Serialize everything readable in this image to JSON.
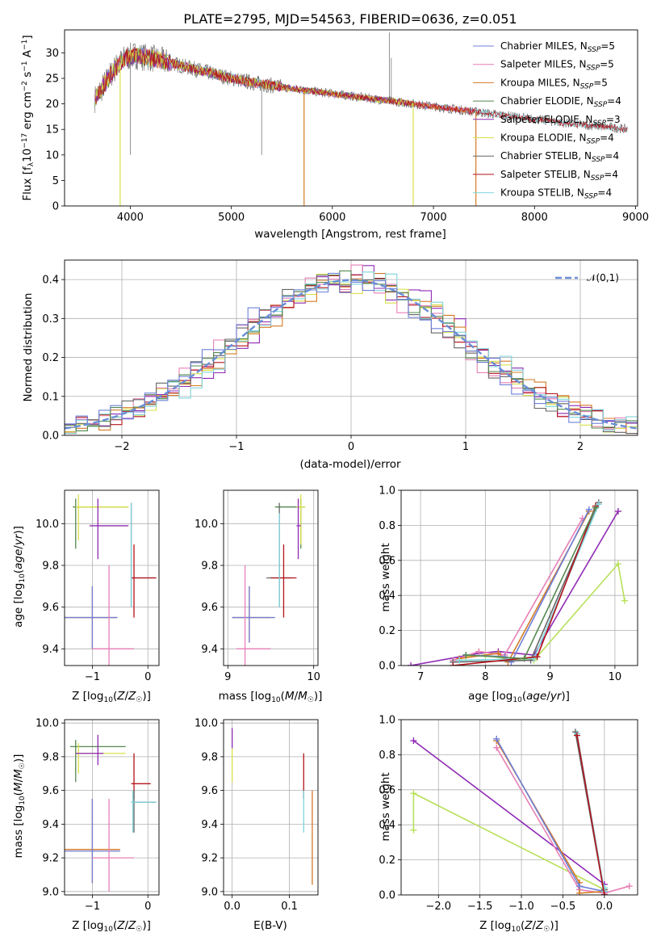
{
  "figure": {
    "title": "PLATE=2795, MJD=54563, FIBERID=0636, z=0.051"
  },
  "colors": {
    "chabrier_miles": "#6f80d8",
    "salpeter_miles": "#e77fb6",
    "kroupa_miles": "#d57a26",
    "chabrier_elodie": "#55894f",
    "salpeter_elodie": "#8f2ab3",
    "kroupa_elodie": "#d8e04a",
    "chabrier_stelib": "#666666",
    "salpeter_stelib": "#b5121b",
    "kroupa_stelib": "#7fd4dc",
    "kroupa_elodie_marker": "#b8e05a",
    "normal_curve": "#6a8ed6"
  },
  "chart_data": [
    {
      "id": "spectrum",
      "type": "line",
      "title": "PLATE=2795, MJD=54563, FIBERID=0636, z=0.051",
      "xlabel": "wavelength [Angstrom, rest frame]",
      "ylabel": "Flux [f_λ 10^-17 erg cm^-2 s^-1 A^-1]",
      "xlim": [
        3350,
        9020
      ],
      "ylim": [
        0,
        34.5
      ],
      "xticks": [
        4000,
        5000,
        6000,
        7000,
        8000,
        9000
      ],
      "yticks": [
        0,
        5,
        10,
        15,
        20,
        25,
        30
      ],
      "legend_position": "top-right",
      "series": [
        {
          "name": "Chabrier MILES, N_SSP=5",
          "color_key": "chabrier_miles",
          "x_range": [
            3650,
            7400
          ]
        },
        {
          "name": "Salpeter MILES, N_SSP=5",
          "color_key": "salpeter_miles",
          "x_range": [
            3650,
            7400
          ]
        },
        {
          "name": "Kroupa MILES, N_SSP=5",
          "color_key": "kroupa_miles",
          "x_range": [
            3650,
            7400
          ]
        },
        {
          "name": "Chabrier ELODIE, N_SSP=4",
          "color_key": "chabrier_elodie",
          "x_range": [
            3650,
            6800
          ]
        },
        {
          "name": "Salpeter ELODIE, N_SSP=3",
          "color_key": "salpeter_elodie",
          "x_range": [
            3650,
            6800
          ]
        },
        {
          "name": "Kroupa ELODIE, N_SSP=4",
          "color_key": "kroupa_elodie",
          "x_range": [
            3650,
            6800
          ]
        },
        {
          "name": "Chabrier STELIB, N_SSP=4",
          "color_key": "chabrier_stelib",
          "x_range": [
            3650,
            8920
          ]
        },
        {
          "name": "Salpeter STELIB, N_SSP=4",
          "color_key": "salpeter_stelib",
          "x_range": [
            3650,
            8920
          ]
        },
        {
          "name": "Kroupa STELIB, N_SSP=4",
          "color_key": "kroupa_stelib",
          "x_range": [
            3650,
            8920
          ]
        }
      ],
      "continuum": [
        [
          3650,
          21
        ],
        [
          3750,
          24
        ],
        [
          3850,
          27
        ],
        [
          3950,
          29
        ],
        [
          4050,
          29.5
        ],
        [
          4200,
          29
        ],
        [
          4400,
          28
        ],
        [
          4600,
          27
        ],
        [
          4800,
          26
        ],
        [
          5000,
          25
        ],
        [
          5200,
          24.2
        ],
        [
          5400,
          23.6
        ],
        [
          5600,
          23
        ],
        [
          5800,
          22.5
        ],
        [
          6000,
          22
        ],
        [
          6200,
          21.5
        ],
        [
          6400,
          21
        ],
        [
          6600,
          20.5
        ],
        [
          6800,
          20
        ],
        [
          7000,
          19.5
        ],
        [
          7200,
          19
        ],
        [
          7400,
          18.5
        ],
        [
          7600,
          18
        ],
        [
          7800,
          17.5
        ],
        [
          8000,
          17
        ],
        [
          8200,
          16.5
        ],
        [
          8400,
          16
        ],
        [
          8600,
          15.7
        ],
        [
          8800,
          15.3
        ],
        [
          8920,
          15
        ]
      ],
      "dips": [
        [
          3900,
          0
        ],
        [
          5720,
          0
        ],
        [
          6800,
          0
        ],
        [
          7420,
          0
        ]
      ],
      "spikes": [
        [
          6563,
          34
        ],
        [
          6583,
          29
        ],
        [
          4000,
          10
        ],
        [
          5300,
          10
        ]
      ]
    },
    {
      "id": "residuals",
      "type": "line",
      "xlabel": "(data-model)/error",
      "ylabel": "Normed distribution",
      "xlim": [
        -2.5,
        2.5
      ],
      "ylim": [
        0,
        0.45
      ],
      "xticks": [
        -2,
        -1,
        0,
        1,
        2
      ],
      "yticks": [
        0.0,
        0.1,
        0.2,
        0.3,
        0.4
      ],
      "legend_position": "top-right",
      "legend": "𝒩(0,1)",
      "bin_width": 0.1
    },
    {
      "id": "age_vs_Z",
      "type": "scatter",
      "xlabel": "Z [log10(Z/Z☉)]",
      "ylabel": "age [log10(age/yr)]",
      "xlim": [
        -1.5,
        0.2
      ],
      "ylim": [
        9.32,
        10.16
      ],
      "xticks": [
        -1,
        0
      ],
      "xtick_labels": [
        "−1",
        "0"
      ],
      "yticks": [
        9.4,
        9.6,
        9.8,
        10.0
      ],
      "points": [
        {
          "x": -1.3,
          "y": 10.08,
          "xerr": 0.0,
          "yerr": 0.2,
          "color_key": "chabrier_elodie",
          "xr": [
            -1.35,
            -0.35
          ],
          "yr": [
            9.88,
            10.12
          ]
        },
        {
          "x": -1.25,
          "y": 10.08,
          "color_key": "kroupa_elodie",
          "xr": [
            -1.3,
            -0.35
          ],
          "yr": [
            9.92,
            10.14
          ]
        },
        {
          "x": -0.9,
          "y": 9.99,
          "color_key": "salpeter_elodie",
          "xr": [
            -1.05,
            -0.35
          ],
          "yr": [
            9.83,
            10.12
          ]
        },
        {
          "x": -0.3,
          "y": 9.74,
          "color_key": "chabrier_stelib",
          "xr": [
            -0.3,
            0.15
          ],
          "yr": [
            9.6,
            10.1
          ]
        },
        {
          "x": -0.25,
          "y": 9.74,
          "color_key": "salpeter_stelib",
          "xr": [
            -0.3,
            0.15
          ],
          "yr": [
            9.55,
            9.9
          ]
        },
        {
          "x": -1.0,
          "y": 9.55,
          "color_key": "kroupa_miles",
          "xr": [
            -1.5,
            -0.55
          ],
          "yr": [
            9.4,
            9.7
          ]
        },
        {
          "x": -1.0,
          "y": 9.55,
          "color_key": "chabrier_miles",
          "xr": [
            -1.5,
            -0.55
          ],
          "yr": [
            9.4,
            9.7
          ]
        },
        {
          "x": -0.7,
          "y": 9.4,
          "color_key": "salpeter_miles",
          "xr": [
            -1.0,
            -0.25
          ],
          "yr": [
            9.32,
            9.8
          ]
        },
        {
          "x": -0.3,
          "y": 9.7,
          "color_key": "kroupa_stelib",
          "xr": [
            -0.3,
            -0.3
          ],
          "yr": [
            9.6,
            10.1
          ]
        }
      ]
    },
    {
      "id": "age_vs_mass",
      "type": "scatter",
      "xlabel": "mass [log10(M/M☉)]",
      "ylabel": "",
      "xlim": [
        8.95,
        10.05
      ],
      "ylim": [
        9.32,
        10.16
      ],
      "xticks": [
        9,
        10
      ],
      "yticks": [
        9.4,
        9.6,
        9.8,
        10.0
      ],
      "points": [
        {
          "color_key": "chabrier_elodie",
          "xr": [
            9.55,
            9.9
          ],
          "yr": [
            9.88,
            10.12
          ],
          "x": 9.85,
          "y": 10.08
        },
        {
          "color_key": "kroupa_elodie",
          "xr": [
            9.8,
            9.9
          ],
          "yr": [
            9.9,
            10.14
          ],
          "x": 9.85,
          "y": 10.08
        },
        {
          "color_key": "salpeter_elodie",
          "xr": [
            9.8,
            9.85
          ],
          "yr": [
            9.83,
            10.12
          ],
          "x": 9.82,
          "y": 9.99
        },
        {
          "color_key": "chabrier_stelib",
          "xr": [
            9.45,
            9.75
          ],
          "yr": [
            9.6,
            10.1
          ],
          "x": 9.6,
          "y": 9.74
        },
        {
          "color_key": "salpeter_stelib",
          "xr": [
            9.5,
            9.8
          ],
          "yr": [
            9.55,
            9.9
          ],
          "x": 9.65,
          "y": 9.74
        },
        {
          "color_key": "kroupa_miles",
          "xr": [
            9.05,
            9.5
          ],
          "yr": [
            9.43,
            9.7
          ],
          "x": 9.25,
          "y": 9.55
        },
        {
          "color_key": "chabrier_miles",
          "xr": [
            9.05,
            9.55
          ],
          "yr": [
            9.43,
            9.7
          ],
          "x": 9.25,
          "y": 9.55
        },
        {
          "color_key": "salpeter_miles",
          "xr": [
            9.1,
            9.5
          ],
          "yr": [
            9.32,
            9.8
          ],
          "x": 9.2,
          "y": 9.4
        },
        {
          "color_key": "kroupa_stelib",
          "xr": [
            9.6,
            9.6
          ],
          "yr": [
            9.6,
            10.05
          ],
          "x": 9.6,
          "y": 9.7
        }
      ]
    },
    {
      "id": "massweight_vs_age",
      "type": "line",
      "xlabel": "age [log10(age/yr)]",
      "ylabel": "mass weight",
      "xlim": [
        6.7,
        10.35
      ],
      "ylim": [
        0,
        1.0
      ],
      "xticks": [
        7,
        8,
        9,
        10
      ],
      "yticks": [
        0.0,
        0.2,
        0.4,
        0.6,
        0.8,
        1.0
      ],
      "series": [
        {
          "color_key": "salpeter_elodie",
          "x": [
            6.85,
            7.9,
            8.2,
            8.75,
            10.05
          ],
          "y": [
            0.0,
            0.07,
            0.08,
            0.06,
            0.88
          ]
        },
        {
          "color_key": "kroupa_elodie",
          "x": [
            7.7,
            8.0,
            8.3,
            8.75,
            10.05,
            10.15
          ],
          "y": [
            0.05,
            0.06,
            0.04,
            0.03,
            0.58,
            0.37
          ]
        },
        {
          "color_key": "salpeter_miles",
          "x": [
            7.5,
            7.9,
            8.3,
            9.5
          ],
          "y": [
            0.03,
            0.08,
            0.06,
            0.84
          ]
        },
        {
          "color_key": "kroupa_miles",
          "x": [
            7.6,
            8.2,
            8.35,
            9.6
          ],
          "y": [
            0.04,
            0.07,
            0.02,
            0.88
          ]
        },
        {
          "color_key": "chabrier_miles",
          "x": [
            7.7,
            8.3,
            8.4,
            9.6
          ],
          "y": [
            0.06,
            0.05,
            0.02,
            0.89
          ]
        },
        {
          "color_key": "chabrier_stelib",
          "x": [
            7.5,
            8.7,
            9.75
          ],
          "y": [
            0.02,
            0.03,
            0.93
          ]
        },
        {
          "color_key": "kroupa_stelib",
          "x": [
            7.6,
            8.75,
            9.75
          ],
          "y": [
            0.03,
            0.04,
            0.92
          ]
        },
        {
          "color_key": "salpeter_stelib",
          "x": [
            7.5,
            8.8,
            9.7
          ],
          "y": [
            0.0,
            0.05,
            0.91
          ]
        },
        {
          "color_key": "chabrier_elodie",
          "x": [
            7.7,
            8.6,
            9.7
          ],
          "y": [
            0.06,
            0.04,
            0.9
          ]
        }
      ]
    },
    {
      "id": "mass_vs_Z",
      "type": "scatter",
      "xlabel": "Z [log10(Z/Z☉)]",
      "ylabel": "mass [log10(M/M☉)]",
      "xlim": [
        -1.5,
        0.2
      ],
      "ylim": [
        8.98,
        10.02
      ],
      "xticks": [
        -1,
        0
      ],
      "xtick_labels": [
        "−1",
        "0"
      ],
      "yticks": [
        9.0,
        9.2,
        9.4,
        9.6,
        9.8,
        10.0
      ],
      "points": [
        {
          "color_key": "chabrier_elodie",
          "xr": [
            -1.4,
            -0.4
          ],
          "yr": [
            9.65,
            9.9
          ],
          "x": -1.3,
          "y": 9.86
        },
        {
          "color_key": "kroupa_elodie",
          "xr": [
            -1.3,
            -0.4
          ],
          "yr": [
            9.7,
            9.88
          ],
          "x": -1.25,
          "y": 9.82
        },
        {
          "color_key": "salpeter_elodie",
          "xr": [
            -1.3,
            -0.8
          ],
          "yr": [
            9.75,
            9.93
          ],
          "x": -0.9,
          "y": 9.82
        },
        {
          "color_key": "salpeter_stelib",
          "xr": [
            -0.3,
            0.05
          ],
          "yr": [
            9.55,
            9.82
          ],
          "x": -0.25,
          "y": 9.64
        },
        {
          "color_key": "chabrier_stelib",
          "xr": [
            -0.3,
            0.15
          ],
          "yr": [
            9.35,
            9.6
          ],
          "x": -0.25,
          "y": 9.53
        },
        {
          "color_key": "kroupa_stelib",
          "xr": [
            -0.3,
            0.15
          ],
          "yr": [
            9.35,
            9.6
          ],
          "x": -0.27,
          "y": 9.53
        },
        {
          "color_key": "kroupa_miles",
          "xr": [
            -1.5,
            -0.5
          ],
          "yr": [
            9.05,
            9.55
          ],
          "x": -1.0,
          "y": 9.25
        },
        {
          "color_key": "chabrier_miles",
          "xr": [
            -1.5,
            -0.5
          ],
          "yr": [
            9.05,
            9.55
          ],
          "x": -1.0,
          "y": 9.24
        },
        {
          "color_key": "salpeter_miles",
          "xr": [
            -1.0,
            -0.25
          ],
          "yr": [
            9.0,
            9.55
          ],
          "x": -0.7,
          "y": 9.2
        }
      ]
    },
    {
      "id": "mass_vs_ebv",
      "type": "scatter",
      "xlabel": "E(B-V)",
      "ylabel": "",
      "xlim": [
        -0.015,
        0.15
      ],
      "ylim": [
        8.98,
        10.02
      ],
      "xticks": [
        0.0,
        0.1
      ],
      "xtick_labels": [
        "0.0",
        "0.1"
      ],
      "yticks": [
        9.0,
        9.2,
        9.4,
        9.6,
        9.8,
        10.0
      ],
      "points": [
        {
          "color_key": "salpeter_elodie",
          "x": 0.0,
          "yr": [
            9.85,
            9.97
          ]
        },
        {
          "color_key": "kroupa_elodie",
          "x": 0.0,
          "yr": [
            9.65,
            9.85
          ]
        },
        {
          "color_key": "salpeter_stelib",
          "x": 0.125,
          "yr": [
            9.55,
            9.82
          ]
        },
        {
          "color_key": "kroupa_stelib",
          "x": 0.125,
          "yr": [
            9.35,
            9.6
          ]
        },
        {
          "color_key": "kroupa_miles",
          "x": 0.14,
          "yr": [
            9.04,
            9.6
          ]
        }
      ]
    },
    {
      "id": "massweight_vs_Z",
      "type": "line",
      "xlabel": "Z [log10(Z/Z☉)]",
      "ylabel": "mass weight",
      "xlim": [
        -2.45,
        0.4
      ],
      "ylim": [
        0,
        1.0
      ],
      "xticks": [
        -2.0,
        -1.5,
        -1.0,
        -0.5,
        0.0
      ],
      "xtick_labels": [
        "−2.0",
        "−1.5",
        "−1.0",
        "−0.5",
        "0.0"
      ],
      "yticks": [
        0.0,
        0.2,
        0.4,
        0.6,
        0.8,
        1.0
      ],
      "series": [
        {
          "color_key": "salpeter_elodie",
          "x": [
            -2.3,
            0.0,
            0.0
          ],
          "y": [
            0.88,
            0.06,
            0.0
          ]
        },
        {
          "color_key": "kroupa_elodie",
          "x": [
            -2.3,
            -2.3,
            0.0
          ],
          "y": [
            0.37,
            0.58,
            0.03
          ]
        },
        {
          "color_key": "salpeter_miles",
          "x": [
            -1.3,
            -0.3,
            0.0,
            0.3
          ],
          "y": [
            0.84,
            0.03,
            0.01,
            0.05
          ]
        },
        {
          "color_key": "kroupa_miles",
          "x": [
            -1.3,
            -0.3,
            -0.3,
            0.0
          ],
          "y": [
            0.88,
            0.07,
            0.01,
            0.02
          ]
        },
        {
          "color_key": "chabrier_miles",
          "x": [
            -1.3,
            -0.3,
            0.0
          ],
          "y": [
            0.89,
            0.05,
            0.02
          ]
        },
        {
          "color_key": "chabrier_stelib",
          "x": [
            -0.35,
            0.0,
            0.0
          ],
          "y": [
            0.93,
            0.0,
            0.03
          ]
        },
        {
          "color_key": "kroupa_stelib",
          "x": [
            -0.33,
            0.0,
            0.0
          ],
          "y": [
            0.92,
            0.02,
            0.04
          ]
        },
        {
          "color_key": "salpeter_stelib",
          "x": [
            -0.33,
            0.0
          ],
          "y": [
            0.91,
            0.0
          ]
        }
      ]
    }
  ],
  "labels": {
    "p1_x": "wavelength [Angstrom, rest frame]",
    "p2_x": "(data-model)/error",
    "p2_y": "Normed distribution",
    "p3_y": "age  [log",
    "p5_y": "mass weight",
    "p6_y": "mass [log",
    "p7_x": "E(B-V)",
    "p8_y": "mass weight",
    "legend_normal": "𝒩(0,1)"
  }
}
